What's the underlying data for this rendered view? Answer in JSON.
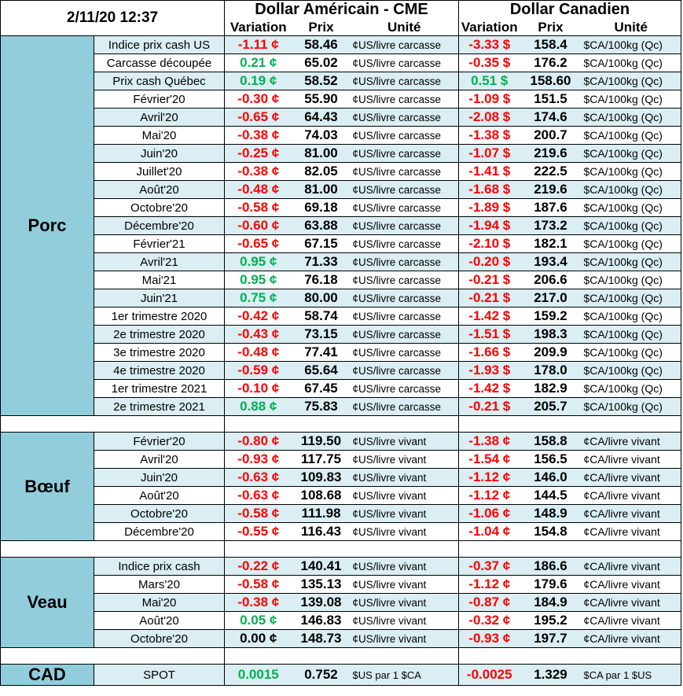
{
  "header": {
    "date": "2/11/20 12:37",
    "usd_title": "Dollar Américain - CME",
    "cad_title": "Dollar Canadien",
    "col_variation": "Variation",
    "col_prix": "Prix",
    "col_unite": "Unité"
  },
  "colors": {
    "negative": "#ff0000",
    "positive": "#00b050",
    "category_bg": "#92cddc",
    "stripe_bg": "#daeef3"
  },
  "sections": [
    {
      "name": "Porc",
      "rows": [
        {
          "label": "Indice prix cash US",
          "us_var": "-1.11 ¢",
          "us_sign": "neg",
          "us_price": "58.46",
          "us_unit": "¢US/livre carcasse",
          "ca_var": "-3.33 $",
          "ca_sign": "neg",
          "ca_price": "158.4",
          "ca_unit": "$CA/100kg (Qc)"
        },
        {
          "label": "Carcasse découpée",
          "us_var": "0.21 ¢",
          "us_sign": "pos",
          "us_price": "65.02",
          "us_unit": "¢US/livre carcasse",
          "ca_var": "-0.35 $",
          "ca_sign": "neg",
          "ca_price": "176.2",
          "ca_unit": "$CA/100kg (Qc)"
        },
        {
          "label": "Prix cash Québec",
          "us_var": "0.19 ¢",
          "us_sign": "pos",
          "us_price": "58.52",
          "us_unit": "¢US/livre carcasse",
          "ca_var": "0.51 $",
          "ca_sign": "pos",
          "ca_price": "158.60",
          "ca_unit": "$CA/100kg (Qc)"
        },
        {
          "label": "Février'20",
          "us_var": "-0.30 ¢",
          "us_sign": "neg",
          "us_price": "55.90",
          "us_unit": "¢US/livre carcasse",
          "ca_var": "-1.09 $",
          "ca_sign": "neg",
          "ca_price": "151.5",
          "ca_unit": "$CA/100kg (Qc)"
        },
        {
          "label": "Avril'20",
          "us_var": "-0.65 ¢",
          "us_sign": "neg",
          "us_price": "64.43",
          "us_unit": "¢US/livre carcasse",
          "ca_var": "-2.08 $",
          "ca_sign": "neg",
          "ca_price": "174.6",
          "ca_unit": "$CA/100kg (Qc)"
        },
        {
          "label": "Mai'20",
          "us_var": "-0.38 ¢",
          "us_sign": "neg",
          "us_price": "74.03",
          "us_unit": "¢US/livre carcasse",
          "ca_var": "-1.38 $",
          "ca_sign": "neg",
          "ca_price": "200.7",
          "ca_unit": "$CA/100kg (Qc)"
        },
        {
          "label": "Juin'20",
          "us_var": "-0.25 ¢",
          "us_sign": "neg",
          "us_price": "81.00",
          "us_unit": "¢US/livre carcasse",
          "ca_var": "-1.07 $",
          "ca_sign": "neg",
          "ca_price": "219.6",
          "ca_unit": "$CA/100kg (Qc)"
        },
        {
          "label": "Juillet'20",
          "us_var": "-0.38 ¢",
          "us_sign": "neg",
          "us_price": "82.05",
          "us_unit": "¢US/livre carcasse",
          "ca_var": "-1.41 $",
          "ca_sign": "neg",
          "ca_price": "222.5",
          "ca_unit": "$CA/100kg (Qc)"
        },
        {
          "label": "Août'20",
          "us_var": "-0.48 ¢",
          "us_sign": "neg",
          "us_price": "81.00",
          "us_unit": "¢US/livre carcasse",
          "ca_var": "-1.68 $",
          "ca_sign": "neg",
          "ca_price": "219.6",
          "ca_unit": "$CA/100kg (Qc)"
        },
        {
          "label": "Octobre'20",
          "us_var": "-0.58 ¢",
          "us_sign": "neg",
          "us_price": "69.18",
          "us_unit": "¢US/livre carcasse",
          "ca_var": "-1.89 $",
          "ca_sign": "neg",
          "ca_price": "187.6",
          "ca_unit": "$CA/100kg (Qc)"
        },
        {
          "label": "Décembre'20",
          "us_var": "-0.60 ¢",
          "us_sign": "neg",
          "us_price": "63.88",
          "us_unit": "¢US/livre carcasse",
          "ca_var": "-1.94 $",
          "ca_sign": "neg",
          "ca_price": "173.2",
          "ca_unit": "$CA/100kg (Qc)"
        },
        {
          "label": "Février'21",
          "us_var": "-0.65 ¢",
          "us_sign": "neg",
          "us_price": "67.15",
          "us_unit": "¢US/livre carcasse",
          "ca_var": "-2.10 $",
          "ca_sign": "neg",
          "ca_price": "182.1",
          "ca_unit": "$CA/100kg (Qc)"
        },
        {
          "label": "Avril'21",
          "us_var": "0.95 ¢",
          "us_sign": "pos",
          "us_price": "71.33",
          "us_unit": "¢US/livre carcasse",
          "ca_var": "-0.20 $",
          "ca_sign": "neg",
          "ca_price": "193.4",
          "ca_unit": "$CA/100kg (Qc)"
        },
        {
          "label": "Mai'21",
          "us_var": "0.95 ¢",
          "us_sign": "pos",
          "us_price": "76.18",
          "us_unit": "¢US/livre carcasse",
          "ca_var": "-0.21 $",
          "ca_sign": "neg",
          "ca_price": "206.6",
          "ca_unit": "$CA/100kg (Qc)"
        },
        {
          "label": "Juin'21",
          "us_var": "0.75 ¢",
          "us_sign": "pos",
          "us_price": "80.00",
          "us_unit": "¢US/livre carcasse",
          "ca_var": "-0.21 $",
          "ca_sign": "neg",
          "ca_price": "217.0",
          "ca_unit": "$CA/100kg (Qc)"
        },
        {
          "label": "1er trimestre 2020",
          "us_var": "-0.42 ¢",
          "us_sign": "neg",
          "us_price": "58.74",
          "us_unit": "¢US/livre carcasse",
          "ca_var": "-1.42 $",
          "ca_sign": "neg",
          "ca_price": "159.2",
          "ca_unit": "$CA/100kg (Qc)"
        },
        {
          "label": "2e trimestre 2020",
          "us_var": "-0.43 ¢",
          "us_sign": "neg",
          "us_price": "73.15",
          "us_unit": "¢US/livre carcasse",
          "ca_var": "-1.51 $",
          "ca_sign": "neg",
          "ca_price": "198.3",
          "ca_unit": "$CA/100kg (Qc)"
        },
        {
          "label": "3e trimestre 2020",
          "us_var": "-0.48 ¢",
          "us_sign": "neg",
          "us_price": "77.41",
          "us_unit": "¢US/livre carcasse",
          "ca_var": "-1.66 $",
          "ca_sign": "neg",
          "ca_price": "209.9",
          "ca_unit": "$CA/100kg (Qc)"
        },
        {
          "label": "4e trimestre 2020",
          "us_var": "-0.59 ¢",
          "us_sign": "neg",
          "us_price": "65.64",
          "us_unit": "¢US/livre carcasse",
          "ca_var": "-1.93 $",
          "ca_sign": "neg",
          "ca_price": "178.0",
          "ca_unit": "$CA/100kg (Qc)"
        },
        {
          "label": "1er trimestre 2021",
          "us_var": "-0.10 ¢",
          "us_sign": "neg",
          "us_price": "67.45",
          "us_unit": "¢US/livre carcasse",
          "ca_var": "-1.42 $",
          "ca_sign": "neg",
          "ca_price": "182.9",
          "ca_unit": "$CA/100kg (Qc)"
        },
        {
          "label": "2e trimestre 2021",
          "us_var": "0.88 ¢",
          "us_sign": "pos",
          "us_price": "75.83",
          "us_unit": "¢US/livre carcasse",
          "ca_var": "-0.21 $",
          "ca_sign": "neg",
          "ca_price": "205.7",
          "ca_unit": "$CA/100kg (Qc)"
        }
      ]
    },
    {
      "name": "Bœuf",
      "rows": [
        {
          "label": "Février'20",
          "us_var": "-0.80 ¢",
          "us_sign": "neg",
          "us_price": "119.50",
          "us_unit": "¢US/livre vivant",
          "ca_var": "-1.38 ¢",
          "ca_sign": "neg",
          "ca_price": "158.8",
          "ca_unit": "¢CA/livre vivant"
        },
        {
          "label": "Avril'20",
          "us_var": "-0.93 ¢",
          "us_sign": "neg",
          "us_price": "117.75",
          "us_unit": "¢US/livre vivant",
          "ca_var": "-1.54 ¢",
          "ca_sign": "neg",
          "ca_price": "156.5",
          "ca_unit": "¢CA/livre vivant"
        },
        {
          "label": "Juin'20",
          "us_var": "-0.63 ¢",
          "us_sign": "neg",
          "us_price": "109.83",
          "us_unit": "¢US/livre vivant",
          "ca_var": "-1.12 ¢",
          "ca_sign": "neg",
          "ca_price": "146.0",
          "ca_unit": "¢CA/livre vivant"
        },
        {
          "label": "Août'20",
          "us_var": "-0.63 ¢",
          "us_sign": "neg",
          "us_price": "108.68",
          "us_unit": "¢US/livre vivant",
          "ca_var": "-1.12 ¢",
          "ca_sign": "neg",
          "ca_price": "144.5",
          "ca_unit": "¢CA/livre vivant"
        },
        {
          "label": "Octobre'20",
          "us_var": "-0.58 ¢",
          "us_sign": "neg",
          "us_price": "111.98",
          "us_unit": "¢US/livre vivant",
          "ca_var": "-1.06 ¢",
          "ca_sign": "neg",
          "ca_price": "148.9",
          "ca_unit": "¢CA/livre vivant"
        },
        {
          "label": "Décembre'20",
          "us_var": "-0.55 ¢",
          "us_sign": "neg",
          "us_price": "116.43",
          "us_unit": "¢US/livre vivant",
          "ca_var": "-1.04 ¢",
          "ca_sign": "neg",
          "ca_price": "154.8",
          "ca_unit": "¢CA/livre vivant"
        }
      ]
    },
    {
      "name": "Veau",
      "rows": [
        {
          "label": "Indice prix cash",
          "us_var": "-0.22 ¢",
          "us_sign": "neg",
          "us_price": "140.41",
          "us_unit": "¢US/livre vivant",
          "ca_var": "-0.37 ¢",
          "ca_sign": "neg",
          "ca_price": "186.6",
          "ca_unit": "¢CA/livre vivant"
        },
        {
          "label": "Mars'20",
          "us_var": "-0.58 ¢",
          "us_sign": "neg",
          "us_price": "135.13",
          "us_unit": "¢US/livre vivant",
          "ca_var": "-1.12 ¢",
          "ca_sign": "neg",
          "ca_price": "179.6",
          "ca_unit": "¢CA/livre vivant"
        },
        {
          "label": "Mai'20",
          "us_var": "-0.38 ¢",
          "us_sign": "neg",
          "us_price": "139.08",
          "us_unit": "¢US/livre vivant",
          "ca_var": "-0.87 ¢",
          "ca_sign": "neg",
          "ca_price": "184.9",
          "ca_unit": "¢CA/livre vivant"
        },
        {
          "label": "Août'20",
          "us_var": "0.05 ¢",
          "us_sign": "pos",
          "us_price": "146.83",
          "us_unit": "¢US/livre vivant",
          "ca_var": "-0.32 ¢",
          "ca_sign": "neg",
          "ca_price": "195.2",
          "ca_unit": "¢CA/livre vivant"
        },
        {
          "label": "Octobre'20",
          "us_var": "0.00 ¢",
          "us_sign": "zer",
          "us_price": "148.73",
          "us_unit": "¢US/livre vivant",
          "ca_var": "-0.93 ¢",
          "ca_sign": "neg",
          "ca_price": "197.7",
          "ca_unit": "¢CA/livre vivant"
        }
      ]
    }
  ],
  "cad": {
    "name": "CAD",
    "label": "SPOT",
    "us_var": "0.0015",
    "us_sign": "pos",
    "us_price": "0.752",
    "us_unit": "$US par 1 $CA",
    "ca_var": "-0.0025",
    "ca_sign": "neg",
    "ca_price": "1.329",
    "ca_unit": "$CA par 1 $US"
  }
}
